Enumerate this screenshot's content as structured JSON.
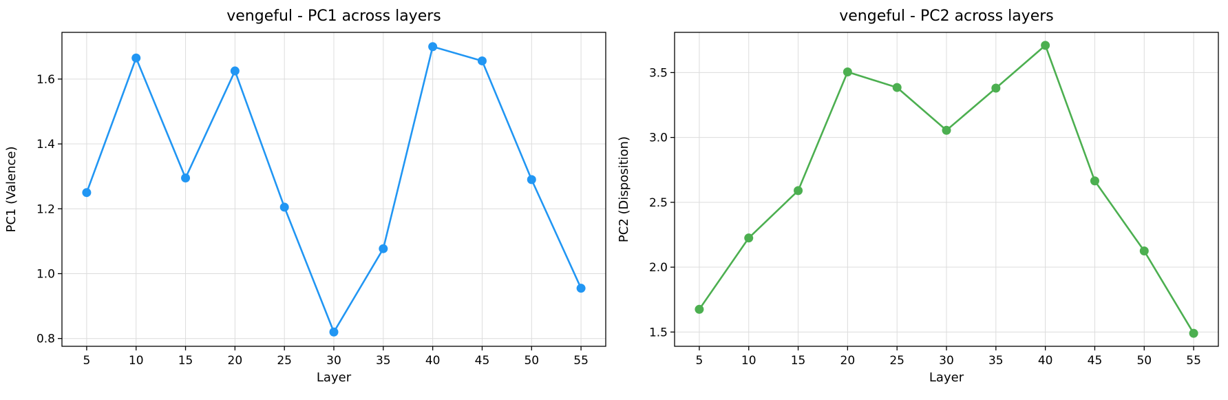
{
  "chart_data": [
    {
      "type": "line",
      "title": "vengeful - PC1 across layers",
      "xlabel": "Layer",
      "ylabel": "PC1 (Valence)",
      "x": [
        5,
        10,
        15,
        20,
        25,
        30,
        35,
        40,
        45,
        50,
        55
      ],
      "xticks": [
        5,
        10,
        15,
        20,
        25,
        30,
        35,
        40,
        45,
        50,
        55
      ],
      "xlim": [
        2.5,
        57.5
      ],
      "yticks": [
        0.8,
        1.0,
        1.2,
        1.4,
        1.6
      ],
      "ytick_labels": [
        "0.8",
        "1.0",
        "1.2",
        "1.4",
        "1.6"
      ],
      "ylim": [
        0.776,
        1.744
      ],
      "grid": true,
      "series": [
        {
          "values": [
            1.25,
            1.665,
            1.295,
            1.625,
            1.205,
            0.82,
            1.077,
            1.7,
            1.656,
            1.29,
            0.955
          ],
          "color": "#2196F3",
          "marker": "circle"
        }
      ]
    },
    {
      "type": "line",
      "title": "vengeful - PC2 across layers",
      "xlabel": "Layer",
      "ylabel": "PC2 (Disposition)",
      "x": [
        5,
        10,
        15,
        20,
        25,
        30,
        35,
        40,
        45,
        50,
        55
      ],
      "xticks": [
        5,
        10,
        15,
        20,
        25,
        30,
        35,
        40,
        45,
        50,
        55
      ],
      "xlim": [
        2.5,
        57.5
      ],
      "yticks": [
        1.5,
        2.0,
        2.5,
        3.0,
        3.5
      ],
      "ytick_labels": [
        "1.5",
        "2.0",
        "2.5",
        "3.0",
        "3.5"
      ],
      "ylim": [
        1.39,
        3.81
      ],
      "grid": true,
      "series": [
        {
          "values": [
            1.675,
            2.225,
            2.59,
            3.505,
            3.385,
            3.055,
            3.38,
            3.71,
            2.665,
            2.125,
            1.49
          ],
          "color": "#4CAF50",
          "marker": "circle"
        }
      ]
    }
  ]
}
